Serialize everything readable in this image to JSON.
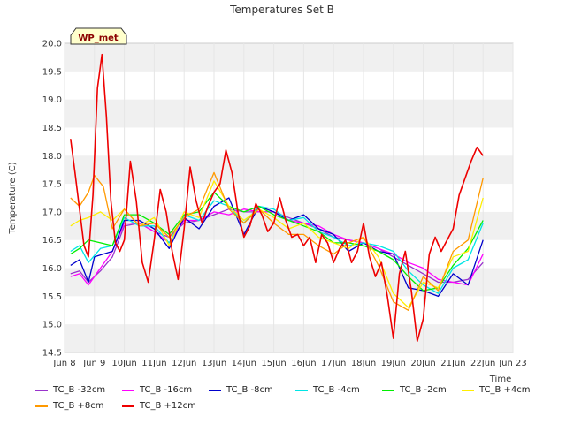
{
  "chart_data": {
    "type": "line",
    "title": "Temperatures Set B",
    "xlabel": "Time",
    "ylabel": "Temperature (C)",
    "badge": "WP_met",
    "xlim": [
      8,
      23
    ],
    "ylim": [
      14.5,
      20.0
    ],
    "x_ticks": [
      {
        "x": 8,
        "label": "Jun 8"
      },
      {
        "x": 9,
        "label": "Jun 9"
      },
      {
        "x": 10,
        "label": "10Jun"
      },
      {
        "x": 11,
        "label": "11Jun"
      },
      {
        "x": 12,
        "label": "12Jun"
      },
      {
        "x": 13,
        "label": "13Jun"
      },
      {
        "x": 14,
        "label": "14Jun"
      },
      {
        "x": 15,
        "label": "15Jun"
      },
      {
        "x": 16,
        "label": "16Jun"
      },
      {
        "x": 17,
        "label": "17Jun"
      },
      {
        "x": 18,
        "label": "18Jun"
      },
      {
        "x": 19,
        "label": "19Jun"
      },
      {
        "x": 20,
        "label": "20Jun"
      },
      {
        "x": 21,
        "label": "21Jun"
      },
      {
        "x": 22,
        "label": "22Jun"
      },
      {
        "x": 23,
        "label": "Jun 23"
      }
    ],
    "y_ticks": [
      "14.5",
      "15.0",
      "15.5",
      "16.0",
      "16.5",
      "17.0",
      "17.5",
      "18.0",
      "18.5",
      "19.0",
      "19.5",
      "20.0"
    ],
    "series": [
      {
        "name": "TC_B -32cm",
        "color": "#9933cc",
        "x": [
          8.2,
          8.5,
          8.8,
          9.2,
          9.6,
          10.0,
          10.5,
          11.0,
          11.5,
          12.0,
          12.5,
          13.0,
          13.5,
          14.0,
          14.5,
          15.0,
          15.5,
          16.0,
          16.5,
          17.0,
          17.5,
          18.0,
          18.5,
          19.0,
          19.5,
          20.0,
          20.5,
          21.0,
          21.5,
          22.0
        ],
        "y": [
          15.9,
          15.95,
          15.75,
          15.95,
          16.2,
          16.75,
          16.8,
          16.65,
          16.55,
          16.8,
          16.85,
          16.95,
          17.05,
          17.0,
          17.0,
          17.0,
          16.9,
          16.8,
          16.7,
          16.55,
          16.5,
          16.45,
          16.35,
          16.2,
          16.05,
          15.9,
          15.75,
          15.75,
          15.8,
          16.1
        ]
      },
      {
        "name": "TC_B -16cm",
        "color": "#ff00ff",
        "x": [
          8.2,
          8.5,
          8.8,
          9.2,
          9.6,
          10.0,
          10.5,
          11.0,
          11.5,
          12.0,
          12.5,
          13.0,
          13.5,
          14.0,
          14.5,
          15.0,
          15.5,
          16.0,
          16.5,
          17.0,
          17.5,
          18.0,
          18.5,
          19.0,
          19.5,
          20.0,
          20.5,
          21.0,
          21.5,
          22.0
        ],
        "y": [
          15.85,
          15.9,
          15.7,
          16.0,
          16.3,
          16.8,
          16.8,
          16.65,
          16.45,
          16.85,
          16.85,
          17.0,
          16.95,
          17.05,
          17.0,
          17.0,
          16.85,
          16.8,
          16.75,
          16.6,
          16.5,
          16.45,
          16.35,
          16.25,
          16.1,
          16.0,
          15.8,
          15.75,
          15.7,
          16.25
        ]
      },
      {
        "name": "TC_B -8cm",
        "color": "#0000cc",
        "x": [
          8.2,
          8.5,
          8.8,
          9.0,
          9.3,
          9.6,
          10.0,
          10.5,
          11.0,
          11.5,
          12.0,
          12.5,
          13.0,
          13.5,
          14.0,
          14.5,
          15.0,
          15.5,
          16.0,
          16.5,
          17.0,
          17.5,
          18.0,
          18.5,
          19.0,
          19.5,
          20.0,
          20.5,
          21.0,
          21.5,
          22.0
        ],
        "y": [
          16.05,
          16.15,
          15.75,
          16.2,
          16.25,
          16.3,
          16.85,
          16.85,
          16.7,
          16.35,
          16.9,
          16.7,
          17.1,
          17.25,
          16.6,
          17.1,
          17.0,
          16.85,
          16.95,
          16.7,
          16.6,
          16.3,
          16.45,
          16.3,
          16.25,
          15.65,
          15.6,
          15.5,
          15.9,
          15.7,
          16.5
        ]
      },
      {
        "name": "TC_B -4cm",
        "color": "#00e5e5",
        "x": [
          8.2,
          8.5,
          8.8,
          9.2,
          9.6,
          10.0,
          10.5,
          11.0,
          11.5,
          12.0,
          12.5,
          13.0,
          13.5,
          14.0,
          14.5,
          15.0,
          15.5,
          16.0,
          16.5,
          17.0,
          17.5,
          18.0,
          18.5,
          19.0,
          19.5,
          20.0,
          20.5,
          21.0,
          21.5,
          22.0
        ],
        "y": [
          16.3,
          16.4,
          16.1,
          16.35,
          16.4,
          16.9,
          16.75,
          16.75,
          16.45,
          16.95,
          16.85,
          17.2,
          17.1,
          16.8,
          17.1,
          17.05,
          16.85,
          16.9,
          16.65,
          16.55,
          16.4,
          16.45,
          16.4,
          16.3,
          15.95,
          15.7,
          15.55,
          16.0,
          16.15,
          16.8
        ]
      },
      {
        "name": "TC_B -2cm",
        "color": "#00ee00",
        "x": [
          8.2,
          8.5,
          8.8,
          9.2,
          9.6,
          10.0,
          10.5,
          11.0,
          11.5,
          12.0,
          12.5,
          13.0,
          13.5,
          14.0,
          14.5,
          15.0,
          15.5,
          16.0,
          16.5,
          17.0,
          17.5,
          18.0,
          18.5,
          19.0,
          19.5,
          20.0,
          20.5,
          21.0,
          21.5,
          22.0
        ],
        "y": [
          16.25,
          16.35,
          16.5,
          16.45,
          16.4,
          16.95,
          16.95,
          16.8,
          16.6,
          16.95,
          17.0,
          17.35,
          17.1,
          17.0,
          17.1,
          16.95,
          16.85,
          16.75,
          16.65,
          16.45,
          16.45,
          16.4,
          16.3,
          16.15,
          15.85,
          15.6,
          15.65,
          16.05,
          16.35,
          16.85
        ]
      },
      {
        "name": "TC_B +4cm",
        "color": "#ffee00",
        "x": [
          8.2,
          8.5,
          8.8,
          9.2,
          9.6,
          10.0,
          10.5,
          11.0,
          11.5,
          12.0,
          12.5,
          13.0,
          13.5,
          14.0,
          14.5,
          15.0,
          15.5,
          16.0,
          16.5,
          17.0,
          17.5,
          18.0,
          18.5,
          19.0,
          19.5,
          20.0,
          20.5,
          21.0,
          21.5,
          22.0
        ],
        "y": [
          16.75,
          16.85,
          16.9,
          17.0,
          16.85,
          17.05,
          16.75,
          16.9,
          16.4,
          17.0,
          16.9,
          17.55,
          17.1,
          16.85,
          17.05,
          16.9,
          16.7,
          16.8,
          16.55,
          16.45,
          16.35,
          16.55,
          16.2,
          15.55,
          15.3,
          15.75,
          15.65,
          16.2,
          16.3,
          17.25
        ]
      },
      {
        "name": "TC_B +8cm",
        "color": "#ff9900",
        "x": [
          8.2,
          8.5,
          8.8,
          9.0,
          9.3,
          9.6,
          10.0,
          10.5,
          11.0,
          11.5,
          12.0,
          12.5,
          13.0,
          13.5,
          14.0,
          14.5,
          15.0,
          15.5,
          16.0,
          16.5,
          17.0,
          17.5,
          18.0,
          18.5,
          19.0,
          19.5,
          20.0,
          20.5,
          21.0,
          21.5,
          22.0
        ],
        "y": [
          17.25,
          17.1,
          17.35,
          17.65,
          17.45,
          16.7,
          17.05,
          16.75,
          16.8,
          16.55,
          16.9,
          17.05,
          17.7,
          17.05,
          16.8,
          17.05,
          16.8,
          16.6,
          16.6,
          16.4,
          16.25,
          16.45,
          16.55,
          16.05,
          15.4,
          15.25,
          15.85,
          15.6,
          16.3,
          16.5,
          17.6
        ]
      },
      {
        "name": "TC_B +12cm",
        "color": "#ee0000",
        "x": [
          8.2,
          8.35,
          8.5,
          8.65,
          8.8,
          8.95,
          9.1,
          9.25,
          9.4,
          9.55,
          9.7,
          9.85,
          10.0,
          10.2,
          10.4,
          10.6,
          10.8,
          11.0,
          11.2,
          11.4,
          11.6,
          11.8,
          12.0,
          12.2,
          12.4,
          12.6,
          12.8,
          13.0,
          13.2,
          13.4,
          13.6,
          13.8,
          14.0,
          14.2,
          14.4,
          14.6,
          14.8,
          15.0,
          15.2,
          15.4,
          15.6,
          15.8,
          16.0,
          16.2,
          16.4,
          16.6,
          16.8,
          17.0,
          17.2,
          17.4,
          17.6,
          17.8,
          18.0,
          18.2,
          18.4,
          18.6,
          18.8,
          19.0,
          19.2,
          19.4,
          19.6,
          19.8,
          20.0,
          20.2,
          20.4,
          20.6,
          20.8,
          21.0,
          21.2,
          21.4,
          21.6,
          21.8,
          22.0
        ],
        "y": [
          18.3,
          17.7,
          17.05,
          16.4,
          16.2,
          17.3,
          19.2,
          19.8,
          18.7,
          17.2,
          16.45,
          16.3,
          16.5,
          17.9,
          17.2,
          16.1,
          15.75,
          16.5,
          17.4,
          17.0,
          16.3,
          15.8,
          16.7,
          17.8,
          17.2,
          16.8,
          17.1,
          17.35,
          17.5,
          18.1,
          17.7,
          17.0,
          16.55,
          16.75,
          17.15,
          16.95,
          16.65,
          16.8,
          17.25,
          16.85,
          16.55,
          16.6,
          16.4,
          16.55,
          16.1,
          16.6,
          16.45,
          16.1,
          16.35,
          16.5,
          16.1,
          16.3,
          16.8,
          16.2,
          15.85,
          16.1,
          15.5,
          14.75,
          15.9,
          16.3,
          15.6,
          14.7,
          15.1,
          16.25,
          16.55,
          16.3,
          16.5,
          16.7,
          17.3,
          17.6,
          17.9,
          18.15,
          18.0
        ]
      }
    ]
  }
}
